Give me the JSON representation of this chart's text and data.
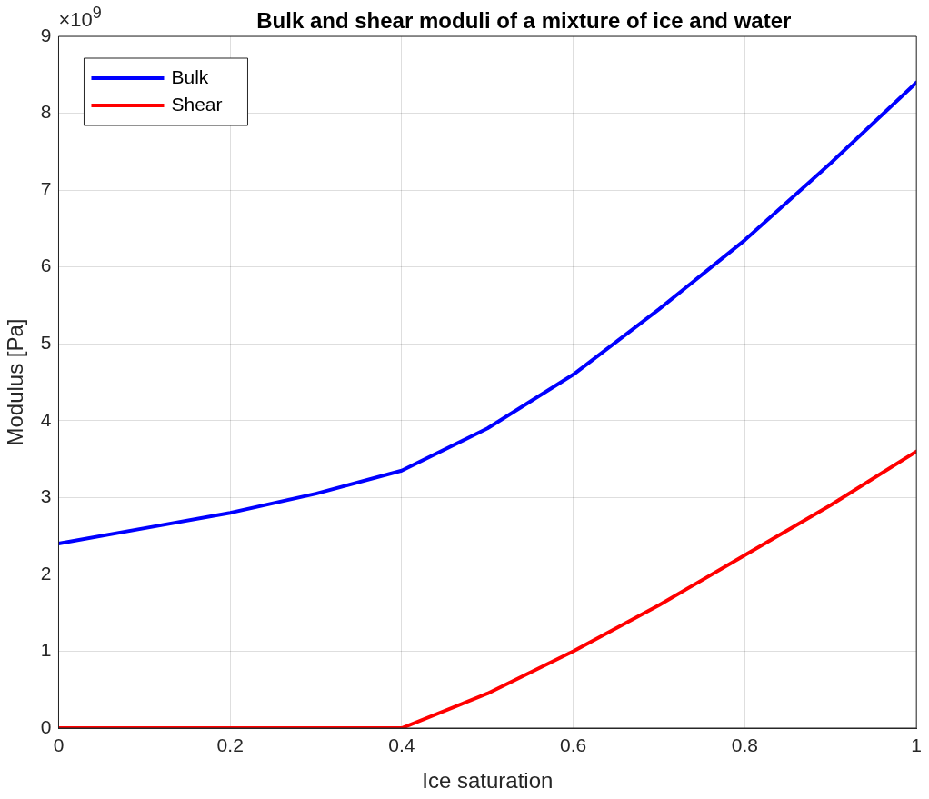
{
  "chart_data": {
    "type": "line",
    "title": "Bulk and shear moduli of a mixture of ice and water",
    "xlabel": "Ice saturation",
    "ylabel": "Modulus [Pa]",
    "x": [
      0,
      0.1,
      0.2,
      0.3,
      0.4,
      0.5,
      0.6,
      0.7,
      0.8,
      0.9,
      1
    ],
    "series": [
      {
        "name": "Bulk",
        "color": "#0000ff",
        "values": [
          2.4,
          2.6,
          2.8,
          3.05,
          3.35,
          3.9,
          4.6,
          5.45,
          6.35,
          7.35,
          8.4
        ]
      },
      {
        "name": "Shear",
        "color": "#ff0000",
        "values": [
          0,
          0,
          0,
          0,
          0,
          0.45,
          1.0,
          1.6,
          2.25,
          2.9,
          3.6
        ]
      }
    ],
    "xlim": [
      0,
      1
    ],
    "xticks": [
      0,
      0.2,
      0.4,
      0.6,
      0.8,
      1
    ],
    "ylim": [
      0,
      9
    ],
    "yticks": [
      0,
      1,
      2,
      3,
      4,
      5,
      6,
      7,
      8,
      9
    ],
    "annotations": [
      "×10$^{9}$"
    ],
    "grid": true,
    "legend": "top left",
    "marker": "none",
    "line_style": "solid"
  }
}
